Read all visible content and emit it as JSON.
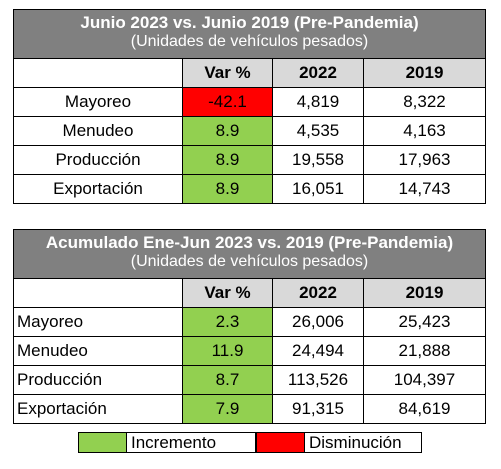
{
  "table1": {
    "title": "Junio 2023 vs. Junio 2019 (Pre-Pandemia)",
    "subtitle": "(Unidades de vehículos pesados)",
    "columns": [
      "Var %",
      "2022",
      "2019"
    ],
    "rows": [
      {
        "label": "Mayoreo",
        "var": "-42.1",
        "v2022": "4,819",
        "v2019": "8,322",
        "status": "decrease"
      },
      {
        "label": "Menudeo",
        "var": "8.9",
        "v2022": "4,535",
        "v2019": "4,163",
        "status": "increase"
      },
      {
        "label": "Producción",
        "var": "8.9",
        "v2022": "19,558",
        "v2019": "17,963",
        "status": "increase"
      },
      {
        "label": "Exportación",
        "var": "8.9",
        "v2022": "16,051",
        "v2019": "14,743",
        "status": "increase"
      }
    ]
  },
  "table2": {
    "title": "Acumulado Ene-Jun 2023 vs. 2019 (Pre-Pandemia)",
    "subtitle": "(Unidades de vehículos pesados)",
    "columns": [
      "Var %",
      "2022",
      "2019"
    ],
    "rows": [
      {
        "label": "Mayoreo",
        "var": "2.3",
        "v2022": "26,006",
        "v2019": "25,423",
        "status": "increase"
      },
      {
        "label": "Menudeo",
        "var": "11.9",
        "v2022": "24,494",
        "v2019": "21,888",
        "status": "increase"
      },
      {
        "label": "Producción",
        "var": "8.7",
        "v2022": "113,526",
        "v2019": "104,397",
        "status": "increase"
      },
      {
        "label": "Exportación",
        "var": "7.9",
        "v2022": "91,315",
        "v2019": "84,619",
        "status": "increase"
      }
    ]
  },
  "legend": {
    "increase_label": "Incremento",
    "decrease_label": "Disminución"
  },
  "colors": {
    "increase": "#92d050",
    "decrease": "#ff0000",
    "header_bg": "#808080",
    "column_header_bg": "#d9d9d9"
  }
}
